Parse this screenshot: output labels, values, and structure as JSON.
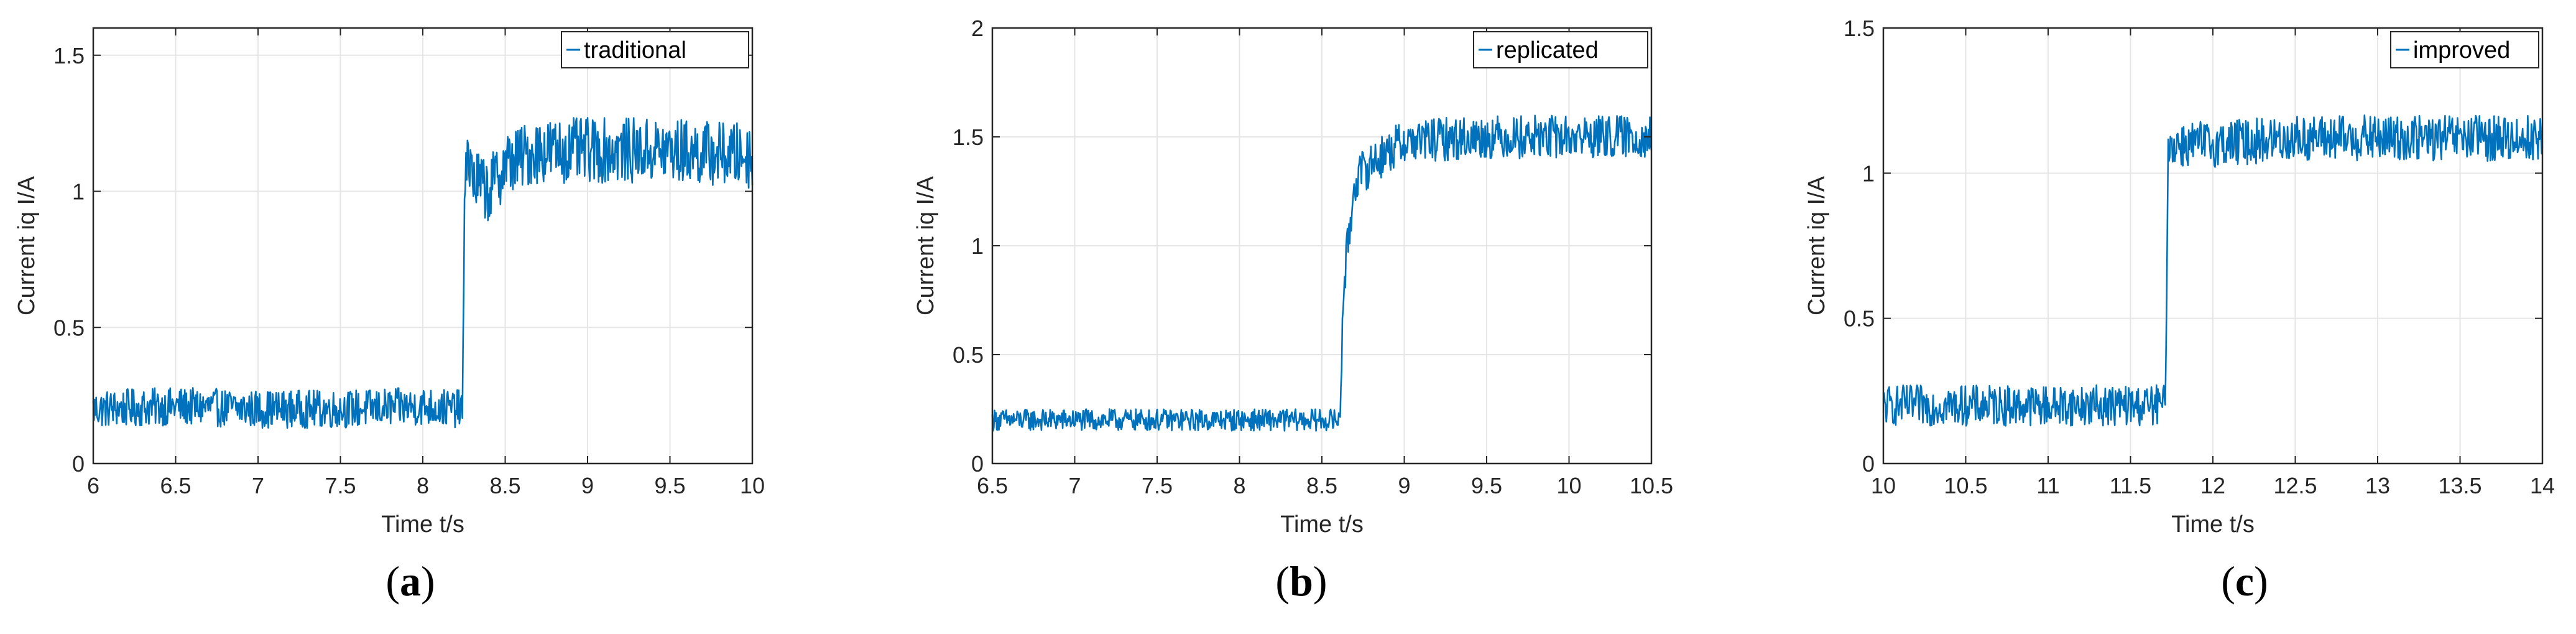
{
  "chart_data": [
    {
      "type": "line",
      "panel_label": "a",
      "xlabel": "Time  t/s",
      "ylabel": "Current  iq  I/A",
      "xlim": [
        6,
        10
      ],
      "ylim": [
        0,
        1.6
      ],
      "xticks": [
        6,
        6.5,
        7,
        7.5,
        8,
        8.5,
        9,
        9.5,
        10
      ],
      "yticks": [
        0,
        0.5,
        1,
        1.5
      ],
      "grid": true,
      "legend_position": "top-right",
      "series": [
        {
          "name": "traditional",
          "color": "#0072BD",
          "step_time": 8.25,
          "x": [
            6,
            6.5,
            7,
            7.5,
            8,
            8.24,
            8.26,
            8.3,
            8.4,
            8.5,
            8.7,
            9,
            9.5,
            10
          ],
          "y": [
            0.2,
            0.21,
            0.2,
            0.2,
            0.21,
            0.2,
            1.18,
            1.05,
            1.0,
            1.1,
            1.15,
            1.15,
            1.15,
            1.13
          ],
          "noise_amplitude": [
            0.07,
            0.12
          ]
        }
      ]
    },
    {
      "type": "line",
      "panel_label": "b",
      "xlabel": "Time  t/s",
      "ylabel": "Current  iq  I/A",
      "xlim": [
        6.5,
        10.5
      ],
      "ylim": [
        0,
        2
      ],
      "xticks": [
        6.5,
        7,
        7.5,
        8,
        8.5,
        9,
        9.5,
        10,
        10.5
      ],
      "yticks": [
        0,
        0.5,
        1,
        1.5,
        2
      ],
      "grid": true,
      "legend_position": "top-right",
      "series": [
        {
          "name": "replicated",
          "color": "#0072BD",
          "step_time": 8.62,
          "x": [
            6.5,
            7,
            7.5,
            8,
            8.5,
            8.61,
            8.63,
            8.7,
            8.8,
            9,
            9.5,
            10,
            10.5
          ],
          "y": [
            0.2,
            0.2,
            0.2,
            0.2,
            0.2,
            0.2,
            0.8,
            1.3,
            1.38,
            1.48,
            1.5,
            1.5,
            1.5
          ],
          "noise_amplitude": [
            0.05,
            0.1
          ]
        }
      ]
    },
    {
      "type": "line",
      "panel_label": "c",
      "xlabel": "Time  t/s",
      "ylabel": "Current  iq  I/A",
      "xlim": [
        10,
        14
      ],
      "ylim": [
        0,
        1.5
      ],
      "xticks": [
        10,
        10.5,
        11,
        11.5,
        12,
        12.5,
        13,
        13.5,
        14
      ],
      "yticks": [
        0,
        0.5,
        1,
        1.5
      ],
      "grid": true,
      "legend_position": "top-right",
      "series": [
        {
          "name": "improved",
          "color": "#0072BD",
          "step_time": 11.72,
          "x": [
            10,
            10.5,
            11,
            11.5,
            11.71,
            11.73,
            12,
            12.5,
            13,
            13.5,
            14
          ],
          "y": [
            0.2,
            0.2,
            0.2,
            0.2,
            0.2,
            1.1,
            1.1,
            1.12,
            1.12,
            1.12,
            1.12
          ],
          "noise_amplitude": [
            0.07,
            0.08
          ]
        }
      ]
    }
  ],
  "labels": {
    "a": "(a)",
    "b": "(b)",
    "c": "(c)"
  }
}
